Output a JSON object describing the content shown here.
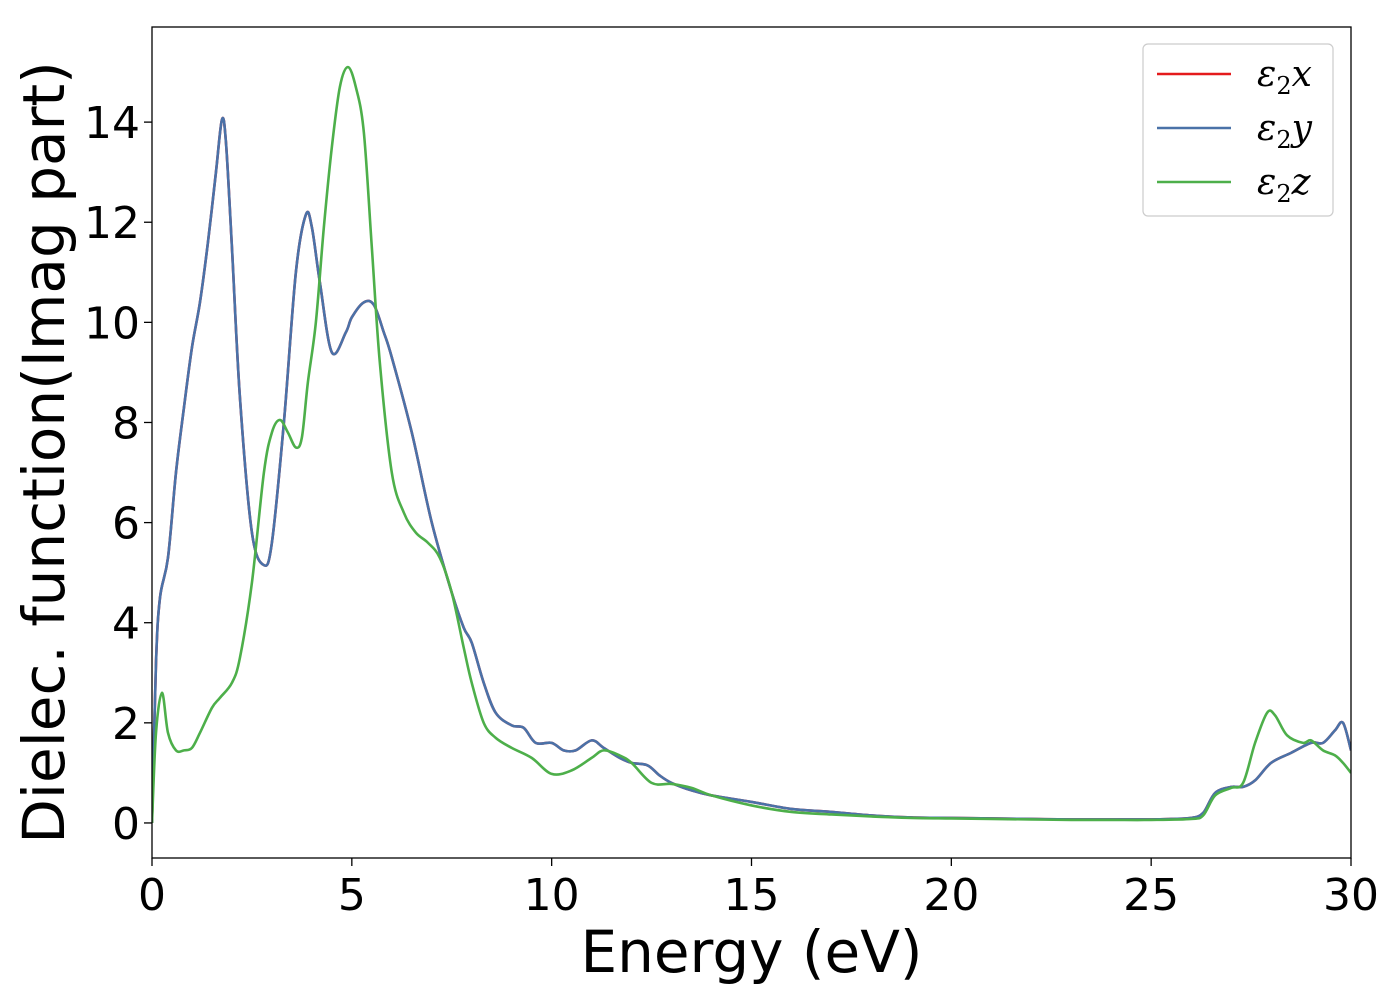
{
  "chart_data": {
    "type": "line",
    "title": "",
    "xlabel": "Energy (eV)",
    "ylabel": "Dielec. function(Imag part)",
    "xlim": [
      0,
      30
    ],
    "ylim": [
      -0.7,
      15.9
    ],
    "xticks": [
      0,
      5,
      10,
      15,
      20,
      25,
      30
    ],
    "yticks": [
      0,
      2,
      4,
      6,
      8,
      10,
      12,
      14
    ],
    "grid": false,
    "legend_position": "top-right",
    "series": [
      {
        "name": "ε₂x",
        "legend_main": "ε",
        "legend_sub": "2",
        "legend_var": "x",
        "color": "#e41a1c",
        "x": [
          0,
          0.1,
          0.2,
          0.4,
          0.6,
          0.8,
          1.0,
          1.2,
          1.4,
          1.6,
          1.75,
          1.85,
          2.0,
          2.2,
          2.5,
          2.8,
          3.0,
          3.3,
          3.6,
          3.85,
          4.0,
          4.2,
          4.5,
          4.85,
          5.0,
          5.3,
          5.55,
          5.8,
          6.0,
          6.5,
          7.0,
          7.5,
          7.8,
          8.0,
          8.3,
          8.6,
          9.0,
          9.3,
          9.6,
          10.0,
          10.3,
          10.6,
          11.0,
          11.3,
          11.7,
          12.0,
          12.4,
          12.7,
          13.0,
          13.5,
          14.0,
          15.0,
          16.0,
          17.0,
          18.0,
          19.0,
          20.0,
          21.0,
          22.0,
          23.0,
          24.0,
          25.0,
          25.5,
          26.0,
          26.3,
          26.6,
          27.0,
          27.3,
          27.6,
          28.0,
          28.5,
          29.0,
          29.3,
          29.6,
          29.8,
          30.0
        ],
        "y": [
          0.0,
          3.2,
          4.5,
          5.3,
          7.0,
          8.3,
          9.5,
          10.4,
          11.6,
          13.0,
          14.05,
          13.6,
          11.5,
          8.5,
          5.8,
          5.15,
          5.6,
          8.0,
          11.0,
          12.15,
          11.9,
          10.8,
          9.4,
          9.8,
          10.1,
          10.4,
          10.35,
          9.8,
          9.3,
          7.8,
          6.0,
          4.6,
          3.9,
          3.6,
          2.8,
          2.2,
          1.95,
          1.9,
          1.6,
          1.6,
          1.45,
          1.45,
          1.65,
          1.5,
          1.3,
          1.2,
          1.15,
          0.95,
          0.8,
          0.65,
          0.55,
          0.42,
          0.28,
          0.22,
          0.15,
          0.11,
          0.1,
          0.09,
          0.08,
          0.07,
          0.07,
          0.07,
          0.08,
          0.1,
          0.2,
          0.6,
          0.72,
          0.72,
          0.85,
          1.2,
          1.4,
          1.6,
          1.6,
          1.85,
          2.0,
          1.45
        ]
      },
      {
        "name": "ε₂y",
        "legend_main": "ε",
        "legend_sub": "2",
        "legend_var": "y",
        "color": "#4a72a8",
        "x": [
          0,
          0.1,
          0.2,
          0.4,
          0.6,
          0.8,
          1.0,
          1.2,
          1.4,
          1.6,
          1.75,
          1.85,
          2.0,
          2.2,
          2.5,
          2.8,
          3.0,
          3.3,
          3.6,
          3.85,
          4.0,
          4.2,
          4.5,
          4.85,
          5.0,
          5.3,
          5.55,
          5.8,
          6.0,
          6.5,
          7.0,
          7.5,
          7.8,
          8.0,
          8.3,
          8.6,
          9.0,
          9.3,
          9.6,
          10.0,
          10.3,
          10.6,
          11.0,
          11.3,
          11.7,
          12.0,
          12.4,
          12.7,
          13.0,
          13.5,
          14.0,
          15.0,
          16.0,
          17.0,
          18.0,
          19.0,
          20.0,
          21.0,
          22.0,
          23.0,
          24.0,
          25.0,
          25.5,
          26.0,
          26.3,
          26.6,
          27.0,
          27.3,
          27.6,
          28.0,
          28.5,
          29.0,
          29.3,
          29.6,
          29.8,
          30.0
        ],
        "y": [
          0.0,
          3.2,
          4.5,
          5.3,
          7.0,
          8.3,
          9.5,
          10.4,
          11.6,
          13.0,
          14.05,
          13.6,
          11.5,
          8.5,
          5.8,
          5.15,
          5.6,
          8.0,
          11.0,
          12.15,
          11.9,
          10.8,
          9.4,
          9.8,
          10.1,
          10.4,
          10.35,
          9.8,
          9.3,
          7.8,
          6.0,
          4.6,
          3.9,
          3.6,
          2.8,
          2.2,
          1.95,
          1.9,
          1.6,
          1.6,
          1.45,
          1.45,
          1.65,
          1.5,
          1.3,
          1.2,
          1.15,
          0.95,
          0.8,
          0.65,
          0.55,
          0.42,
          0.28,
          0.22,
          0.15,
          0.11,
          0.1,
          0.09,
          0.08,
          0.07,
          0.07,
          0.07,
          0.08,
          0.1,
          0.2,
          0.6,
          0.72,
          0.72,
          0.85,
          1.2,
          1.4,
          1.6,
          1.6,
          1.85,
          2.0,
          1.45
        ]
      },
      {
        "name": "ε₂z",
        "legend_main": "ε",
        "legend_sub": "2",
        "legend_var": "z",
        "color": "#4daf4a",
        "x": [
          0,
          0.1,
          0.25,
          0.4,
          0.6,
          0.8,
          1.0,
          1.2,
          1.5,
          1.7,
          2.0,
          2.2,
          2.5,
          2.8,
          3.0,
          3.2,
          3.4,
          3.6,
          3.75,
          3.9,
          4.1,
          4.3,
          4.5,
          4.7,
          4.9,
          5.1,
          5.3,
          5.5,
          5.7,
          6.0,
          6.3,
          6.6,
          6.9,
          7.2,
          7.5,
          7.8,
          8.0,
          8.3,
          8.6,
          9.0,
          9.5,
          10.0,
          10.5,
          11.0,
          11.3,
          11.7,
          12.0,
          12.5,
          13.0,
          13.5,
          14.0,
          15.0,
          16.0,
          17.0,
          18.0,
          19.0,
          20.0,
          21.0,
          22.0,
          23.0,
          24.0,
          25.0,
          26.0,
          26.3,
          26.6,
          27.0,
          27.3,
          27.6,
          27.9,
          28.1,
          28.4,
          28.8,
          29.0,
          29.3,
          29.6,
          29.8,
          30.0
        ],
        "y": [
          0.0,
          1.8,
          2.6,
          1.8,
          1.45,
          1.45,
          1.5,
          1.8,
          2.3,
          2.5,
          2.8,
          3.3,
          4.8,
          7.0,
          7.8,
          8.05,
          7.8,
          7.5,
          7.7,
          8.8,
          10.0,
          11.9,
          13.5,
          14.7,
          15.1,
          14.7,
          13.8,
          11.5,
          9.2,
          7.0,
          6.2,
          5.8,
          5.6,
          5.3,
          4.6,
          3.5,
          2.8,
          2.0,
          1.7,
          1.5,
          1.3,
          0.98,
          1.05,
          1.3,
          1.45,
          1.35,
          1.2,
          0.8,
          0.78,
          0.7,
          0.55,
          0.35,
          0.22,
          0.17,
          0.13,
          0.1,
          0.09,
          0.08,
          0.07,
          0.06,
          0.06,
          0.06,
          0.08,
          0.15,
          0.55,
          0.7,
          0.8,
          1.6,
          2.2,
          2.15,
          1.75,
          1.6,
          1.65,
          1.45,
          1.35,
          1.2,
          1.0
        ]
      }
    ]
  }
}
